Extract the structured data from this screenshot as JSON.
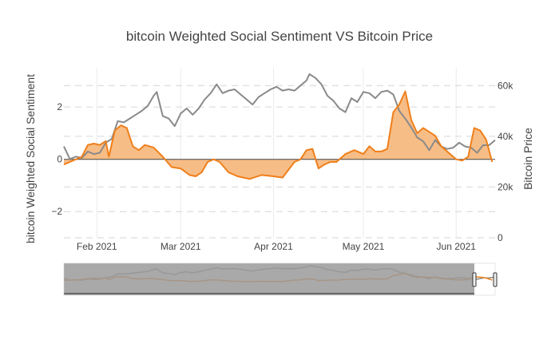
{
  "chart_data": {
    "type": "line",
    "title": "bitcoin Weighted Social Sentiment VS Bitcoin Price",
    "y_left": {
      "label": "bitcoin Weighted Social Sentiment",
      "range": [
        -3,
        3.5
      ],
      "ticks": [
        -2,
        0,
        2
      ],
      "tick_labels": [
        "−2",
        "0",
        "2"
      ]
    },
    "y_right": {
      "label": "Bitcoin Price",
      "range": [
        0,
        67000
      ],
      "ticks": [
        0,
        20000,
        40000,
        60000
      ],
      "tick_labels": [
        "0",
        "20k",
        "40k",
        "60k"
      ]
    },
    "x_axis": {
      "range": [
        "2021-01-21",
        "2021-06-14"
      ],
      "ticks": [
        "2021-02-01",
        "2021-03-01",
        "2021-04-01",
        "2021-05-01",
        "2021-06-01"
      ],
      "tick_labels": [
        "Feb 2021",
        "Mar 2021",
        "Apr 2021",
        "May 2021",
        "Jun 2021"
      ]
    },
    "colors": {
      "sentiment": "#ef7f1a",
      "sentiment_fill": "#f7bd86",
      "price": "#8a8a8a",
      "rangeslider_mask": "#9a9a9a",
      "rangeslider_line": "#555555"
    },
    "series": [
      {
        "axis": "left",
        "x": [
          "2021-01-21",
          "2021-01-24",
          "2021-01-27",
          "2021-01-29",
          "2021-01-31",
          "2021-02-02",
          "2021-02-04",
          "2021-02-05",
          "2021-02-07",
          "2021-02-09",
          "2021-02-11",
          "2021-02-13",
          "2021-02-15",
          "2021-02-17",
          "2021-02-20",
          "2021-02-23",
          "2021-02-26",
          "2021-03-01",
          "2021-03-04",
          "2021-03-06",
          "2021-03-08",
          "2021-03-10",
          "2021-03-12",
          "2021-03-14",
          "2021-03-17",
          "2021-03-20",
          "2021-03-24",
          "2021-03-28",
          "2021-04-01",
          "2021-04-04",
          "2021-04-08",
          "2021-04-10",
          "2021-04-12",
          "2021-04-14",
          "2021-04-16",
          "2021-04-18",
          "2021-04-20",
          "2021-04-22",
          "2021-04-25",
          "2021-04-28",
          "2021-05-01",
          "2021-05-03",
          "2021-05-05",
          "2021-05-07",
          "2021-05-09",
          "2021-05-11",
          "2021-05-13",
          "2021-05-15",
          "2021-05-17",
          "2021-05-19",
          "2021-05-21",
          "2021-05-23",
          "2021-05-25",
          "2021-05-27",
          "2021-05-29",
          "2021-06-01",
          "2021-06-03",
          "2021-06-05",
          "2021-06-07",
          "2021-06-09",
          "2021-06-11",
          "2021-06-13"
        ],
        "y": [
          -0.2,
          -0.05,
          0.1,
          0.55,
          0.6,
          0.55,
          0.7,
          0.1,
          1.1,
          1.3,
          1.2,
          0.5,
          0.35,
          0.55,
          0.45,
          0.1,
          -0.3,
          -0.35,
          -0.6,
          -0.65,
          -0.5,
          -0.1,
          0.0,
          -0.1,
          -0.5,
          -0.65,
          -0.75,
          -0.6,
          -0.65,
          -0.7,
          -0.1,
          0.0,
          0.35,
          0.4,
          -0.35,
          -0.2,
          -0.1,
          -0.1,
          0.2,
          0.35,
          0.2,
          0.5,
          0.3,
          0.3,
          0.4,
          1.8,
          2.1,
          2.6,
          1.5,
          1.0,
          1.2,
          1.05,
          0.9,
          0.5,
          0.3,
          0.0,
          -0.05,
          0.1,
          1.2,
          1.1,
          0.75,
          -0.1
        ]
      },
      {
        "axis": "right",
        "x": [
          "2021-01-21",
          "2021-01-23",
          "2021-01-25",
          "2021-01-27",
          "2021-01-29",
          "2021-01-31",
          "2021-02-02",
          "2021-02-04",
          "2021-02-06",
          "2021-02-08",
          "2021-02-10",
          "2021-02-12",
          "2021-02-14",
          "2021-02-16",
          "2021-02-18",
          "2021-02-20",
          "2021-02-21",
          "2021-02-23",
          "2021-02-25",
          "2021-02-27",
          "2021-03-01",
          "2021-03-03",
          "2021-03-05",
          "2021-03-07",
          "2021-03-09",
          "2021-03-11",
          "2021-03-13",
          "2021-03-15",
          "2021-03-17",
          "2021-03-19",
          "2021-03-21",
          "2021-03-23",
          "2021-03-25",
          "2021-03-27",
          "2021-03-29",
          "2021-03-31",
          "2021-04-02",
          "2021-04-04",
          "2021-04-06",
          "2021-04-08",
          "2021-04-10",
          "2021-04-12",
          "2021-04-13",
          "2021-04-15",
          "2021-04-17",
          "2021-04-19",
          "2021-04-21",
          "2021-04-23",
          "2021-04-25",
          "2021-04-27",
          "2021-04-29",
          "2021-05-01",
          "2021-05-03",
          "2021-05-05",
          "2021-05-07",
          "2021-05-09",
          "2021-05-11",
          "2021-05-13",
          "2021-05-15",
          "2021-05-17",
          "2021-05-19",
          "2021-05-21",
          "2021-05-23",
          "2021-05-25",
          "2021-05-27",
          "2021-05-29",
          "2021-05-31",
          "2021-06-02",
          "2021-06-04",
          "2021-06-06",
          "2021-06-08",
          "2021-06-10",
          "2021-06-12",
          "2021-06-14"
        ],
        "y": [
          36000,
          31000,
          32000,
          31500,
          34000,
          33000,
          33500,
          37500,
          39000,
          46000,
          45500,
          47000,
          48500,
          50000,
          52000,
          56000,
          57500,
          48000,
          47000,
          44000,
          49000,
          51000,
          48500,
          51000,
          54500,
          57000,
          60500,
          57000,
          58000,
          58500,
          56500,
          54500,
          52500,
          55500,
          57000,
          58500,
          59500,
          58000,
          58500,
          58000,
          60000,
          62000,
          64500,
          63000,
          60500,
          56000,
          54000,
          51000,
          49500,
          55000,
          53500,
          57500,
          57000,
          55000,
          57500,
          58000,
          56500,
          50000,
          47000,
          43500,
          39500,
          38000,
          34500,
          38500,
          36000,
          35000,
          35500,
          37500,
          36000,
          35500,
          33500,
          36500,
          36500,
          38500
        ]
      }
    ],
    "zero_line": 0,
    "legend": "none",
    "rangeslider": {
      "visible": true,
      "selected_range": [
        "2021-01-21",
        "2021-06-14"
      ]
    }
  }
}
